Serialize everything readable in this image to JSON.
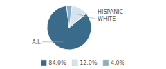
{
  "chart_data": {
    "type": "pie",
    "categories": [
      "A.I.",
      "WHITE",
      "HISPANIC"
    ],
    "values": [
      84.0,
      12.0,
      4.0
    ],
    "value_labels": [
      "84.0%",
      "12.0%",
      "4.0%"
    ],
    "colors": [
      "#3a6b8a",
      "#d6e4ef",
      "#8aafc4"
    ],
    "legend": "bottom"
  }
}
